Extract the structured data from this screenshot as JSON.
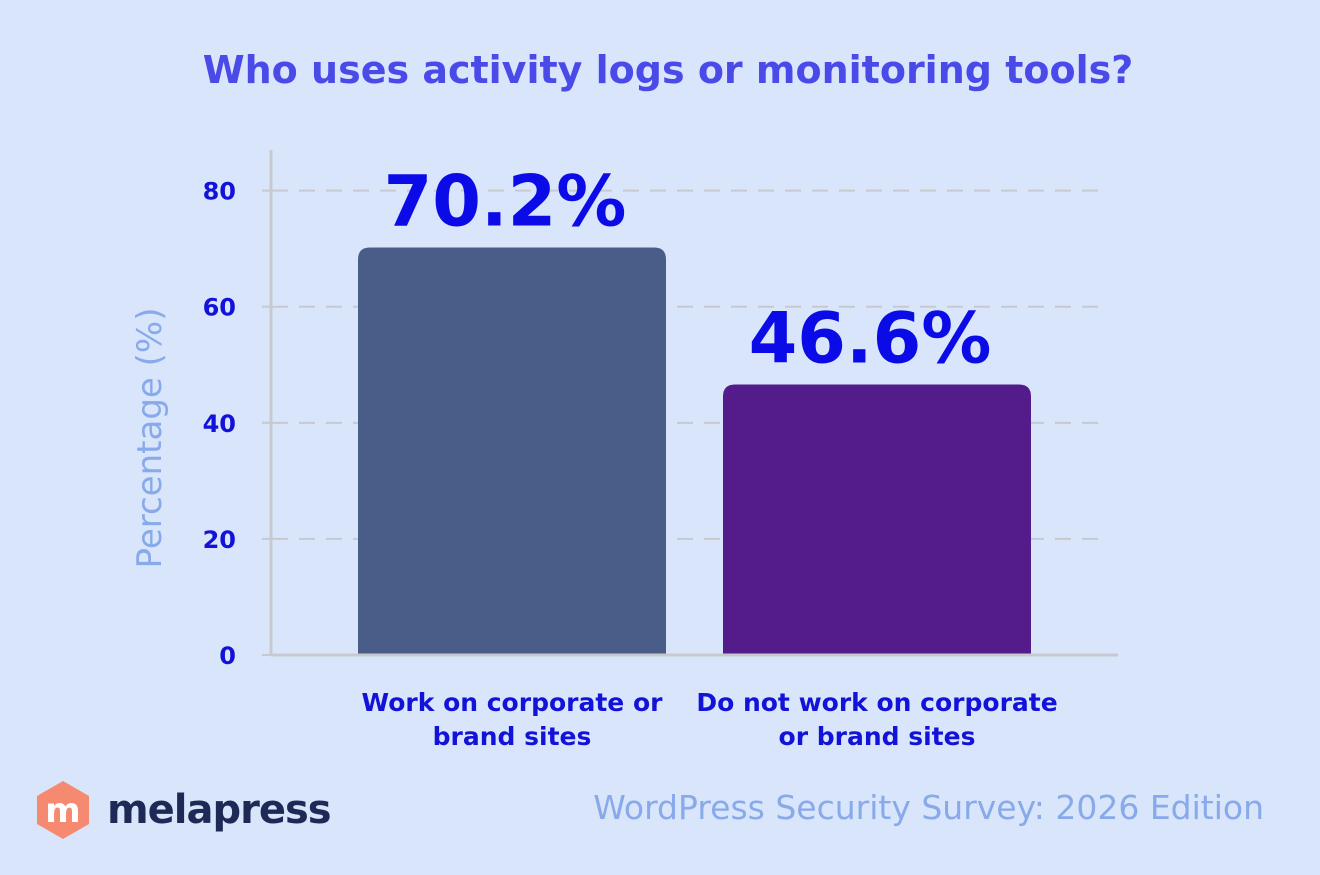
{
  "chart_data": {
    "type": "bar",
    "title": "Who uses activity logs or monitoring tools?",
    "ylabel": "Percentage (%)",
    "ylim": [
      0,
      87
    ],
    "yticks": [
      0,
      20,
      40,
      60,
      80
    ],
    "grid": true,
    "categories": [
      [
        "Work on corporate or",
        "brand sites"
      ],
      [
        "Do not work on corporate",
        "or brand sites"
      ]
    ],
    "values": [
      70.2,
      46.6
    ],
    "value_labels": [
      "70.2%",
      "46.6%"
    ],
    "colors": [
      "#4a5d89",
      "#541c8b"
    ]
  },
  "colors": {
    "background": "#d8e5fb",
    "title": "#4a4ae8",
    "axis_text": "#1212d9",
    "ylabel": "#88a9ea",
    "value_label": "#0b0be8",
    "brand_accent": "#f58a70",
    "brand_text": "#1e2a55"
  },
  "brand": {
    "logo_letter": "m",
    "name": "melapress"
  },
  "footer": {
    "text": "WordPress Security Survey: 2026 Edition"
  }
}
